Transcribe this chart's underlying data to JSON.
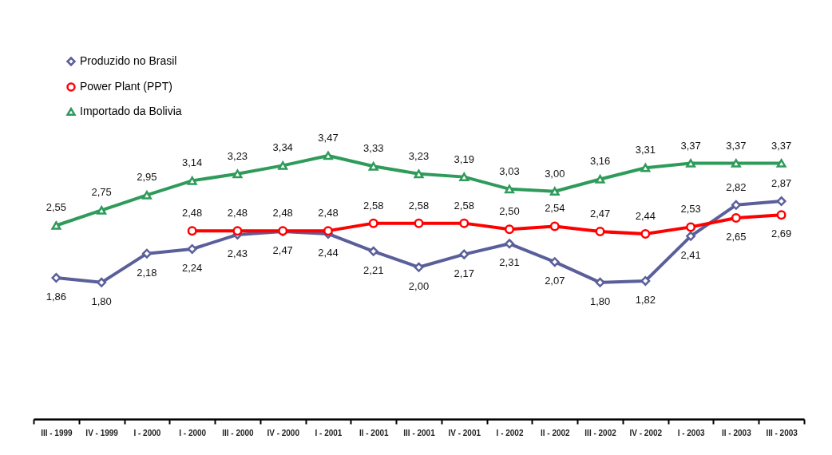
{
  "chart_data": {
    "type": "line",
    "categories": [
      "III - 1999",
      "IV - 1999",
      "I - 2000",
      "I - 2000",
      "III - 2000",
      "IV - 2000",
      "I - 2001",
      "II - 2001",
      "III - 2001",
      "IV - 2001",
      "I - 2002",
      "II - 2002",
      "III - 2002",
      "IV - 2002",
      "I - 2003",
      "II - 2003",
      "III - 2003"
    ],
    "series": [
      {
        "name": "Produzido no Brasil",
        "color": "#5a5f9a",
        "marker": "diamond",
        "values": [
          1.86,
          1.8,
          2.18,
          2.24,
          2.43,
          2.47,
          2.44,
          2.21,
          2.0,
          2.17,
          2.31,
          2.07,
          1.8,
          1.82,
          2.41,
          2.82,
          2.87
        ],
        "value_labels": [
          "1,86",
          "1,80",
          "2,18",
          "2,24",
          "2,43",
          "2,47",
          "2,44",
          "2,21",
          "2,00",
          "2,17",
          "2,31",
          "2,07",
          "1,80",
          "1,82",
          "2,41",
          "2,82",
          "2,87"
        ]
      },
      {
        "name": "Power Plant (PPT)",
        "color": "#ff0000",
        "marker": "circle",
        "values": [
          null,
          null,
          null,
          2.48,
          2.48,
          2.48,
          2.48,
          2.58,
          2.58,
          2.58,
          2.5,
          2.54,
          2.47,
          2.44,
          2.53,
          2.65,
          2.69
        ],
        "value_labels": [
          null,
          null,
          null,
          "2,48",
          "2,48",
          "2,48",
          "2,48",
          "2,58",
          "2,58",
          "2,58",
          "2,50",
          "2,54",
          "2,47",
          "2,44",
          "2,53",
          "2,65",
          "2,69"
        ]
      },
      {
        "name": "Importado da Bolivia",
        "color": "#2e9b5a",
        "marker": "triangle",
        "values": [
          2.55,
          2.75,
          2.95,
          3.14,
          3.23,
          3.34,
          3.47,
          3.33,
          3.23,
          3.19,
          3.03,
          3.0,
          3.16,
          3.31,
          3.37,
          3.37,
          3.37
        ],
        "value_labels": [
          "2,55",
          "2,75",
          "2,95",
          "3,14",
          "3,23",
          "3,34",
          "3,47",
          "3,33",
          "3,23",
          "3,19",
          "3,03",
          "3,00",
          "3,16",
          "3,31",
          "3,37",
          "3,37",
          "3,37"
        ]
      }
    ],
    "legend": "top left",
    "grid": false
  }
}
